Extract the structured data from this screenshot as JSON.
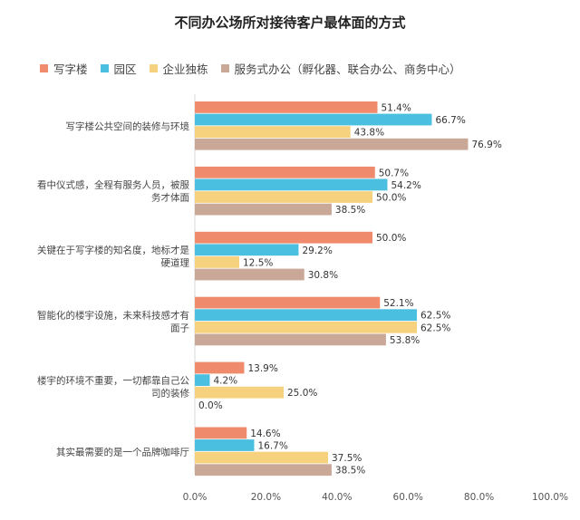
{
  "chart_data": {
    "type": "bar",
    "orientation": "horizontal",
    "title": "不同办公场所对接待客户最体面的方式",
    "categories": [
      "写字楼公共空间的装修与环境",
      "看中仪式感，全程有服务人员，被服务才体面",
      "关键在于写字楼的知名度，地标才是硬道理",
      "智能化的楼宇设施，未来科技感才有面子",
      "楼宇的环境不重要，一切都靠自己公司的装修",
      "其实最需要的是一个品牌咖啡厅"
    ],
    "category_lines": [
      [
        "写字楼公共空间的装修与环境"
      ],
      [
        "看中仪式感，全程有服务人员，被服",
        "务才体面"
      ],
      [
        "关键在于写字楼的知名度，地标才是",
        "硬道理"
      ],
      [
        "智能化的楼宇设施，未来科技感才有",
        "面子"
      ],
      [
        "楼宇的环境不重要，一切都靠自己公",
        "司的装修"
      ],
      [
        "其实最需要的是一个品牌咖啡厅"
      ]
    ],
    "series": [
      {
        "name": "写字楼",
        "color": "#F08A6C",
        "values": [
          51.4,
          50.7,
          50.0,
          52.1,
          13.9,
          14.6
        ]
      },
      {
        "name": "园区",
        "color": "#4BBFE0",
        "values": [
          66.7,
          54.2,
          29.2,
          62.5,
          4.2,
          16.7
        ]
      },
      {
        "name": "企业独栋",
        "color": "#F6D27E",
        "values": [
          43.8,
          50.0,
          12.5,
          62.5,
          25.0,
          37.5
        ]
      },
      {
        "name": "服务式办公（孵化器、联合办公、商务中心）",
        "color": "#C9A898",
        "values": [
          76.9,
          38.5,
          30.8,
          53.8,
          0.0,
          38.5
        ]
      }
    ],
    "xlim": [
      0,
      100
    ],
    "xticks": [
      "0.0%",
      "20.0%",
      "40.0%",
      "60.0%",
      "80.0%",
      "100.0%"
    ],
    "value_suffix": "%",
    "legend_position": "top",
    "grid": false
  }
}
